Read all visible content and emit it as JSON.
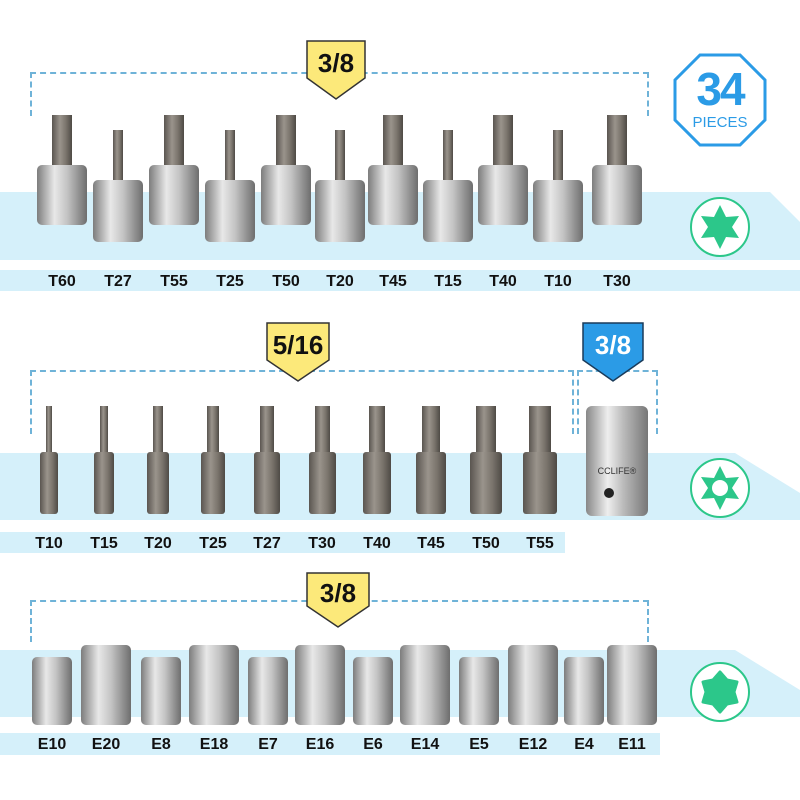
{
  "pieces_badge": {
    "count": "34",
    "unit": "PIECES",
    "color": "#2b9be6"
  },
  "sections": [
    {
      "drive": "3/8",
      "badge_color": "#fce97a",
      "type": "torx-bit-socket",
      "star_icon": "torx-star-icon",
      "labels": [
        "T60",
        "T27",
        "T55",
        "T25",
        "T50",
        "T20",
        "T45",
        "T15",
        "T40",
        "T10",
        "T30"
      ]
    },
    {
      "drive": "5/16",
      "badge_color": "#fce97a",
      "type": "torx-bit",
      "star_icon": "security-torx-icon",
      "labels": [
        "T10",
        "T15",
        "T20",
        "T25",
        "T27",
        "T30",
        "T40",
        "T45",
        "T50",
        "T55"
      ],
      "adapter": {
        "drive": "3/8",
        "badge_color": "#2b9be6",
        "brand": "CCLIFE®"
      }
    },
    {
      "drive": "3/8",
      "badge_color": "#fce97a",
      "type": "e-torx-socket",
      "star_icon": "external-torx-icon",
      "labels": [
        "E10",
        "E20",
        "E8",
        "E18",
        "E7",
        "E16",
        "E6",
        "E14",
        "E5",
        "E12",
        "E4",
        "E11"
      ]
    }
  ]
}
